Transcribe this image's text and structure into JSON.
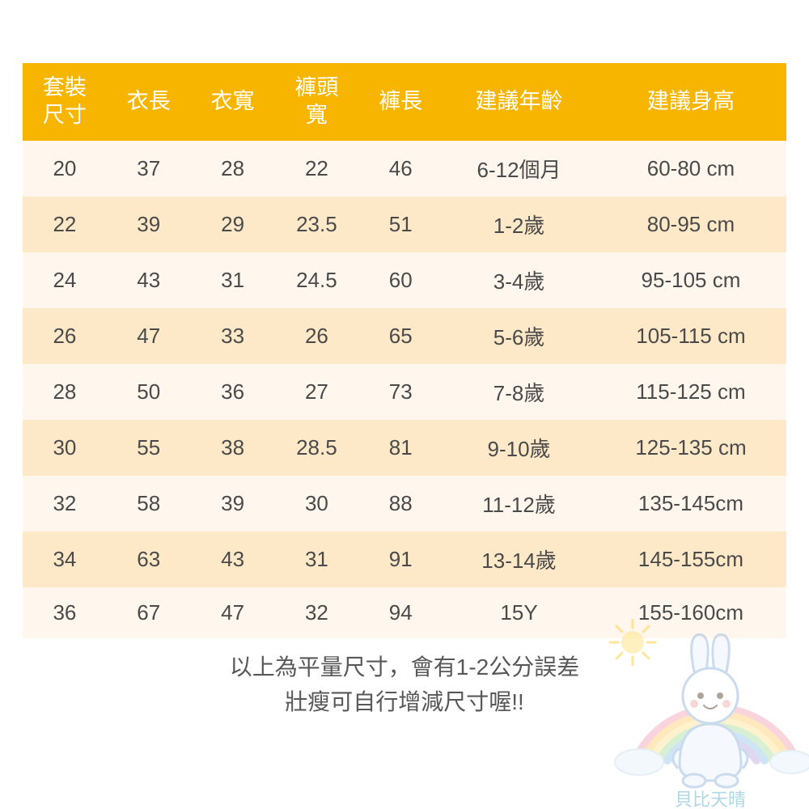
{
  "table": {
    "type": "table",
    "header_bg": "#f7b500",
    "header_fg": "#ffffff",
    "header_fontsize": 27,
    "body_fontsize": 26,
    "body_fg": "#4a4a4a",
    "row_bg_odd": "#fff7ed",
    "row_bg_even": "#fde8c8",
    "column_widths_pct": [
      11,
      11,
      11,
      11,
      11,
      20,
      25
    ],
    "columns": [
      "套裝尺寸",
      "衣長",
      "衣寬",
      "褲頭寬",
      "褲長",
      "建議年齡",
      "建議身高"
    ],
    "header_multiline": [
      "套裝\n尺寸",
      "衣長",
      "衣寬",
      "褲頭\n寬",
      "褲長",
      "建議年齡",
      "建議身高"
    ],
    "rows": [
      [
        "20",
        "37",
        "28",
        "22",
        "46",
        "6-12個月",
        "60-80 cm"
      ],
      [
        "22",
        "39",
        "29",
        "23.5",
        "51",
        "1-2歲",
        "80-95 cm"
      ],
      [
        "24",
        "43",
        "31",
        "24.5",
        "60",
        "3-4歲",
        "95-105 cm"
      ],
      [
        "26",
        "47",
        "33",
        "26",
        "65",
        "5-6歲",
        "105-115 cm"
      ],
      [
        "28",
        "50",
        "36",
        "27",
        "73",
        "7-8歲",
        "115-125 cm"
      ],
      [
        "30",
        "55",
        "38",
        "28.5",
        "81",
        "9-10歲",
        "125-135 cm"
      ],
      [
        "32",
        "58",
        "39",
        "30",
        "88",
        "11-12歲",
        "135-145cm"
      ],
      [
        "34",
        "63",
        "43",
        "31",
        "91",
        "13-14歲",
        "145-155cm"
      ],
      [
        "36",
        "67",
        "47",
        "32",
        "94",
        "15Y",
        "155-160cm"
      ]
    ]
  },
  "footer": {
    "line1": "以上為平量尺寸，會有1-2公分誤差",
    "line2": "壯瘦可自行增減尺寸喔!!",
    "fontsize": 28,
    "color": "#585858"
  },
  "deco": {
    "name": "bunny-rainbow-watermark",
    "brand_text": "貝比天晴",
    "brand_color": "#9fd6e9",
    "rainbow_colors": [
      "#f7b1c1",
      "#ffd58a",
      "#ffe9a3",
      "#b7e3b0",
      "#a9d1ef",
      "#c8b7e6"
    ],
    "sun_color": "#ffd24a",
    "bunny_outline": "#9fbfe0",
    "opacity": 0.55
  }
}
